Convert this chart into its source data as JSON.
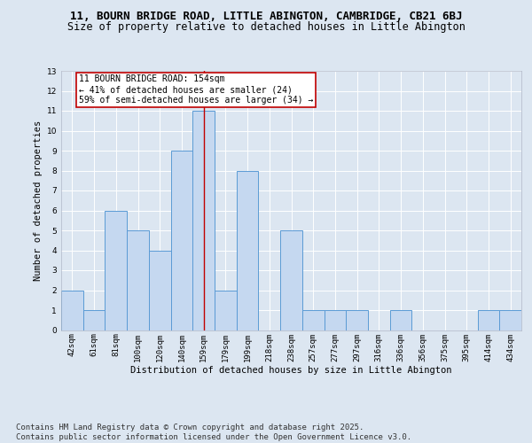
{
  "title": "11, BOURN BRIDGE ROAD, LITTLE ABINGTON, CAMBRIDGE, CB21 6BJ",
  "subtitle": "Size of property relative to detached houses in Little Abington",
  "xlabel": "Distribution of detached houses by size in Little Abington",
  "ylabel": "Number of detached properties",
  "categories": [
    "42sqm",
    "61sqm",
    "81sqm",
    "100sqm",
    "120sqm",
    "140sqm",
    "159sqm",
    "179sqm",
    "199sqm",
    "218sqm",
    "238sqm",
    "257sqm",
    "277sqm",
    "297sqm",
    "316sqm",
    "336sqm",
    "356sqm",
    "375sqm",
    "395sqm",
    "414sqm",
    "434sqm"
  ],
  "values": [
    2,
    1,
    6,
    5,
    4,
    9,
    11,
    2,
    8,
    0,
    5,
    1,
    1,
    1,
    0,
    1,
    0,
    0,
    0,
    1,
    1
  ],
  "bar_color": "#c5d8f0",
  "bar_edge_color": "#5b9bd5",
  "highlight_index": 6,
  "highlight_line_color": "#c00000",
  "annotation_text": "11 BOURN BRIDGE ROAD: 154sqm\n← 41% of detached houses are smaller (24)\n59% of semi-detached houses are larger (34) →",
  "annotation_box_color": "#ffffff",
  "annotation_box_edge": "#c00000",
  "ylim": [
    0,
    13
  ],
  "yticks": [
    0,
    1,
    2,
    3,
    4,
    5,
    6,
    7,
    8,
    9,
    10,
    11,
    12,
    13
  ],
  "bg_color": "#dce6f1",
  "grid_color": "#ffffff",
  "footer": "Contains HM Land Registry data © Crown copyright and database right 2025.\nContains public sector information licensed under the Open Government Licence v3.0.",
  "title_fontsize": 9,
  "subtitle_fontsize": 8.5,
  "footer_fontsize": 6.5,
  "axis_label_fontsize": 7.5,
  "tick_fontsize": 6.5,
  "ylabel_fontsize": 7.5,
  "annotation_fontsize": 7
}
